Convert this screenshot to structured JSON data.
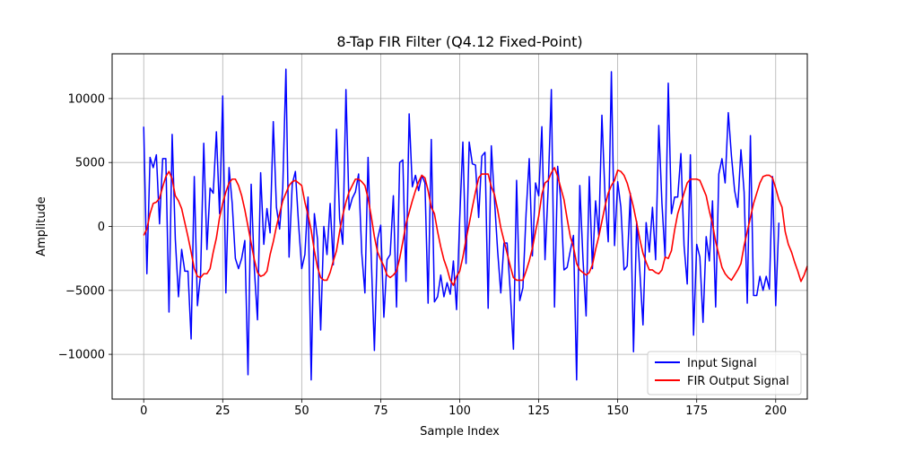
{
  "chart_data": {
    "type": "line",
    "title": "8-Tap FIR Filter (Q4.12 Fixed-Point)",
    "xlabel": "Sample Index",
    "ylabel": "Amplitude",
    "xlim": [
      -10,
      210
    ],
    "ylim": [
      -13500,
      13500
    ],
    "grid": true,
    "legend_position": "lower right",
    "x_ticks": [
      0,
      25,
      50,
      75,
      100,
      125,
      150,
      175,
      200
    ],
    "x_tick_labels": [
      "0",
      "25",
      "50",
      "75",
      "100",
      "125",
      "150",
      "175",
      "200"
    ],
    "y_ticks": [
      -10000,
      -5000,
      0,
      5000,
      10000
    ],
    "y_tick_labels": [
      "−10000",
      "−5000",
      "0",
      "5000",
      "10000"
    ],
    "series": [
      {
        "name": "Input Signal",
        "color": "#0000ff",
        "values": [
          7800,
          -3700,
          5400,
          4600,
          5600,
          200,
          5300,
          5300,
          -6700,
          7200,
          -1000,
          -5500,
          -1800,
          -3500,
          -3500,
          -8800,
          3900,
          -6200,
          -3700,
          6500,
          -1800,
          3000,
          2600,
          7400,
          1000,
          10200,
          -5200,
          4600,
          1800,
          -2500,
          -3300,
          -2500,
          -1100,
          -11600,
          3300,
          -3300,
          -7300,
          4200,
          -1400,
          1400,
          -500,
          8200,
          1500,
          -200,
          3000,
          12300,
          -2400,
          3300,
          4300,
          200,
          -3300,
          -2200,
          2300,
          -12000,
          1000,
          -1000,
          -8100,
          0,
          -2200,
          1800,
          -3000,
          7600,
          600,
          -1400,
          10700,
          1300,
          2200,
          2700,
          4100,
          -2100,
          -5200,
          5400,
          -2400,
          -9700,
          -1000,
          100,
          -7100,
          -2600,
          -2200,
          2400,
          -6300,
          5000,
          5200,
          -4300,
          8800,
          3100,
          4000,
          2800,
          4000,
          3400,
          -6000,
          6800,
          -5900,
          -5500,
          -3800,
          -5500,
          -4400,
          -5300,
          -2700,
          -6500,
          600,
          6600,
          -2900,
          6600,
          4900,
          4800,
          700,
          5500,
          5800,
          -6400,
          6300,
          2100,
          -1900,
          -5200,
          -1300,
          -1300,
          -5100,
          -9600,
          3600,
          -5800,
          -4800,
          1000,
          5300,
          -2300,
          3400,
          2400,
          7800,
          -2600,
          3000,
          10700,
          -6300,
          4700,
          2000,
          -3400,
          -3200,
          -1900,
          -700,
          -12000,
          3200,
          -2500,
          -7000,
          3900,
          -3300,
          2000,
          -700,
          8700,
          2300,
          -1200,
          12100,
          -1500,
          3500,
          1500,
          -3400,
          -3100,
          2600,
          -9800,
          400,
          -3500,
          -7700,
          300,
          -2000,
          1500,
          -2600,
          7900,
          1800,
          -2400,
          11200,
          1000,
          2300,
          2300,
          5700,
          -1500,
          -4500,
          5600,
          -8500,
          -1400,
          -2400,
          -7500,
          -800,
          -2700,
          2000,
          -6300,
          4100,
          5300,
          3400,
          8900,
          5500,
          2800,
          1500,
          6000,
          2700,
          -6000,
          7100,
          -5400,
          -5400,
          -3900,
          -5000,
          -3900,
          -4900,
          3900,
          -6200,
          300
        ]
      },
      {
        "name": "FIR Output Signal",
        "color": "#ff0000",
        "values": [
          -700,
          -200,
          1000,
          1800,
          1900,
          2200,
          3100,
          3900,
          4300,
          3700,
          2400,
          2000,
          1400,
          300,
          -800,
          -2000,
          -3300,
          -3900,
          -4000,
          -3700,
          -3700,
          -3300,
          -2000,
          -900,
          700,
          1800,
          2700,
          3400,
          3700,
          3700,
          3200,
          2400,
          1300,
          0,
          -1300,
          -2600,
          -3600,
          -3900,
          -3800,
          -3500,
          -2200,
          -1200,
          0,
          1000,
          2000,
          2600,
          3200,
          3500,
          3600,
          3400,
          3200,
          1900,
          900,
          -300,
          -1900,
          -3200,
          -4000,
          -4200,
          -4200,
          -3600,
          -2700,
          -1900,
          -400,
          900,
          1900,
          2700,
          3200,
          3700,
          3700,
          3500,
          3200,
          2200,
          800,
          -800,
          -2000,
          -2600,
          -3100,
          -3800,
          -4000,
          -3800,
          -3500,
          -2500,
          -1200,
          200,
          1100,
          2000,
          2800,
          3500,
          4000,
          3800,
          2800,
          1500,
          1000,
          -400,
          -1600,
          -2600,
          -3300,
          -4200,
          -4600,
          -3900,
          -3500,
          -2400,
          -1000,
          200,
          1500,
          2700,
          3800,
          4100,
          4100,
          4100,
          3100,
          2500,
          1300,
          -100,
          -1100,
          -2100,
          -3100,
          -4000,
          -4200,
          -4200,
          -4200,
          -3500,
          -2700,
          -1700,
          -400,
          800,
          2500,
          3400,
          3600,
          4200,
          4600,
          3900,
          3000,
          2100,
          600,
          -800,
          -1600,
          -2900,
          -3400,
          -3600,
          -3800,
          -3600,
          -3000,
          -1800,
          -800,
          400,
          1600,
          2600,
          3200,
          3600,
          4400,
          4300,
          4000,
          3400,
          2500,
          1500,
          300,
          -1000,
          -2100,
          -2800,
          -3400,
          -3400,
          -3600,
          -3700,
          -3400,
          -2400,
          -2500,
          -1900,
          -300,
          1000,
          1800,
          2600,
          3400,
          3700,
          3700,
          3700,
          3600,
          3000,
          2400,
          1200,
          200,
          -1200,
          -2200,
          -3200,
          -3700,
          -4000,
          -4200,
          -3800,
          -3400,
          -2900,
          -1500,
          -400,
          700,
          1800,
          2600,
          3400,
          3900,
          4000,
          4000,
          3800,
          3000,
          2100,
          1500,
          -400,
          -1400,
          -2000,
          -2800,
          -3500,
          -4300,
          -3800,
          -3100
        ]
      }
    ]
  }
}
